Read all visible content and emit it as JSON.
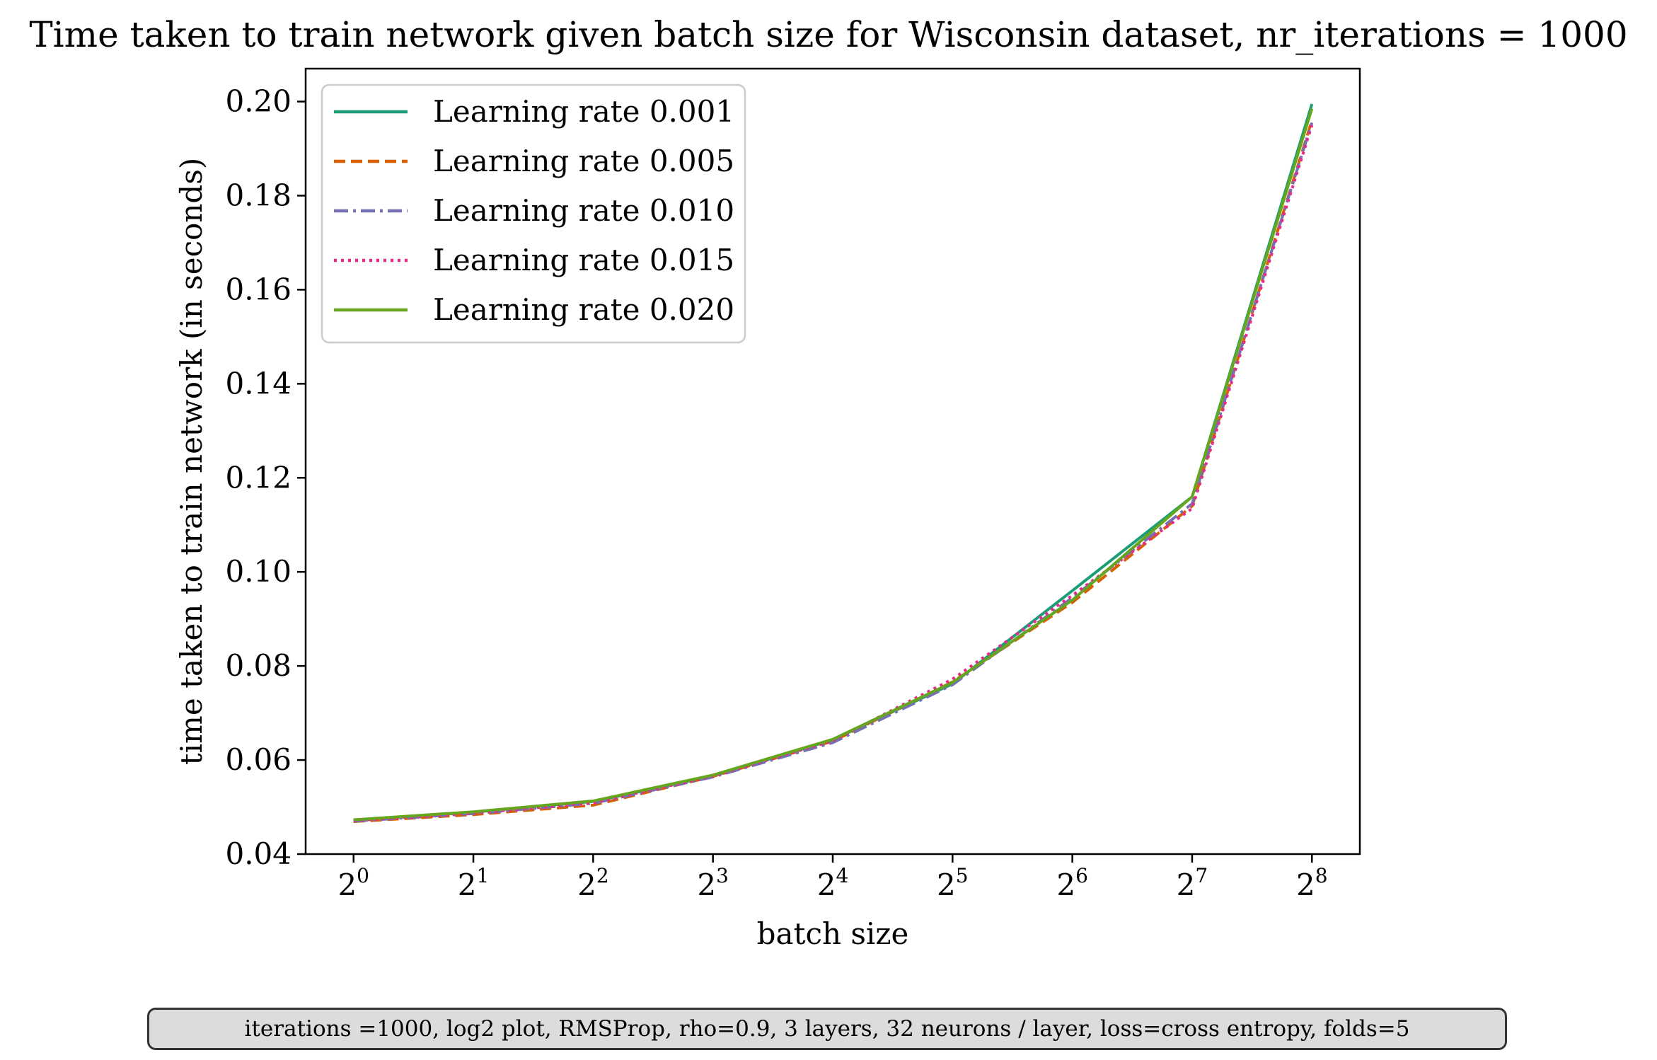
{
  "chart_data": {
    "type": "line",
    "title": "Time taken to train network given batch size for Wisconsin dataset, nr_iterations = 1000",
    "xlabel": "batch size",
    "ylabel": "time taken to train network (in seconds)",
    "x_scale": "log2",
    "x": [
      1,
      2,
      4,
      8,
      16,
      32,
      64,
      128,
      256
    ],
    "x_tick_labels": [
      {
        "base": "2",
        "exp": "0"
      },
      {
        "base": "2",
        "exp": "1"
      },
      {
        "base": "2",
        "exp": "2"
      },
      {
        "base": "2",
        "exp": "3"
      },
      {
        "base": "2",
        "exp": "4"
      },
      {
        "base": "2",
        "exp": "5"
      },
      {
        "base": "2",
        "exp": "6"
      },
      {
        "base": "2",
        "exp": "7"
      },
      {
        "base": "2",
        "exp": "8"
      }
    ],
    "ylim": [
      0.04,
      0.207
    ],
    "y_ticks": [
      0.04,
      0.06,
      0.08,
      0.1,
      0.12,
      0.14,
      0.16,
      0.18,
      0.2
    ],
    "y_tick_labels": [
      "0.04",
      "0.06",
      "0.08",
      "0.10",
      "0.12",
      "0.14",
      "0.16",
      "0.18",
      "0.20"
    ],
    "legend_position": "upper-left",
    "grid": false,
    "series": [
      {
        "name": "Learning rate 0.001",
        "color": "#1b9e77",
        "style": "solid",
        "values": [
          0.0472,
          0.0489,
          0.0512,
          0.0566,
          0.0643,
          0.0762,
          0.096,
          0.116,
          0.1995
        ]
      },
      {
        "name": "Learning rate 0.005",
        "color": "#d95f02",
        "style": "dashed",
        "values": [
          0.0469,
          0.0484,
          0.0504,
          0.0565,
          0.064,
          0.0766,
          0.0935,
          0.114,
          0.196
        ]
      },
      {
        "name": "Learning rate 0.010",
        "color": "#7570b3",
        "style": "dashdot",
        "values": [
          0.047,
          0.0486,
          0.0508,
          0.0564,
          0.0637,
          0.076,
          0.0945,
          0.1145,
          0.1955
        ]
      },
      {
        "name": "Learning rate 0.015",
        "color": "#e7298a",
        "style": "dotted",
        "values": [
          0.0471,
          0.0487,
          0.0509,
          0.0566,
          0.0641,
          0.0772,
          0.095,
          0.1135,
          0.195
        ]
      },
      {
        "name": "Learning rate 0.020",
        "color": "#66a61e",
        "style": "solid",
        "values": [
          0.0473,
          0.049,
          0.0513,
          0.0568,
          0.0644,
          0.0765,
          0.094,
          0.116,
          0.1985
        ]
      }
    ]
  },
  "caption": "iterations =1000, log2 plot, RMSProp, rho=0.9, 3 layers, 32 neurons / layer, loss=cross entropy, folds=5"
}
